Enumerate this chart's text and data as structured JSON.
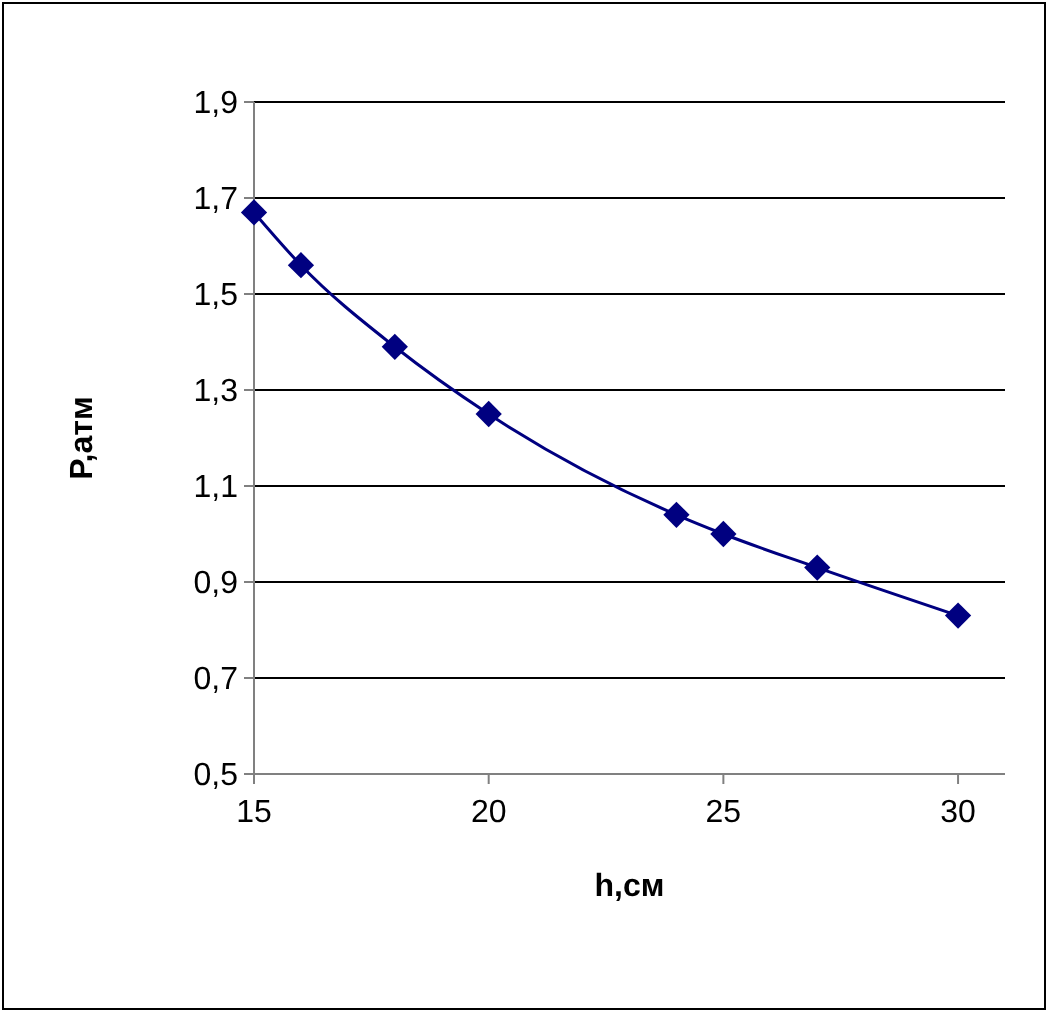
{
  "chart_data": {
    "type": "line",
    "xlabel": "h,см",
    "ylabel": "P,атм",
    "x": [
      15,
      16,
      18,
      20,
      24,
      25,
      27,
      30
    ],
    "series": [
      {
        "color": "#000080",
        "values": [
          1.67,
          1.56,
          1.39,
          1.25,
          1.04,
          1.0,
          0.93,
          0.83
        ]
      }
    ],
    "xlim": [
      15,
      31
    ],
    "xticks": [
      15,
      20,
      25,
      30
    ],
    "ylim": [
      0.5,
      1.9
    ],
    "yticks": [
      {
        "value": 0.5,
        "label": "0,5"
      },
      {
        "value": 0.7,
        "label": "0,7"
      },
      {
        "value": 0.9,
        "label": "0,9"
      },
      {
        "value": 1.1,
        "label": "1,1"
      },
      {
        "value": 1.3,
        "label": "1,3"
      },
      {
        "value": 1.5,
        "label": "1,5"
      },
      {
        "value": 1.7,
        "label": "1,7"
      },
      {
        "value": 1.9,
        "label": "1,9"
      }
    ],
    "grid": "y",
    "marker": "diamond",
    "line_style": "solid"
  }
}
